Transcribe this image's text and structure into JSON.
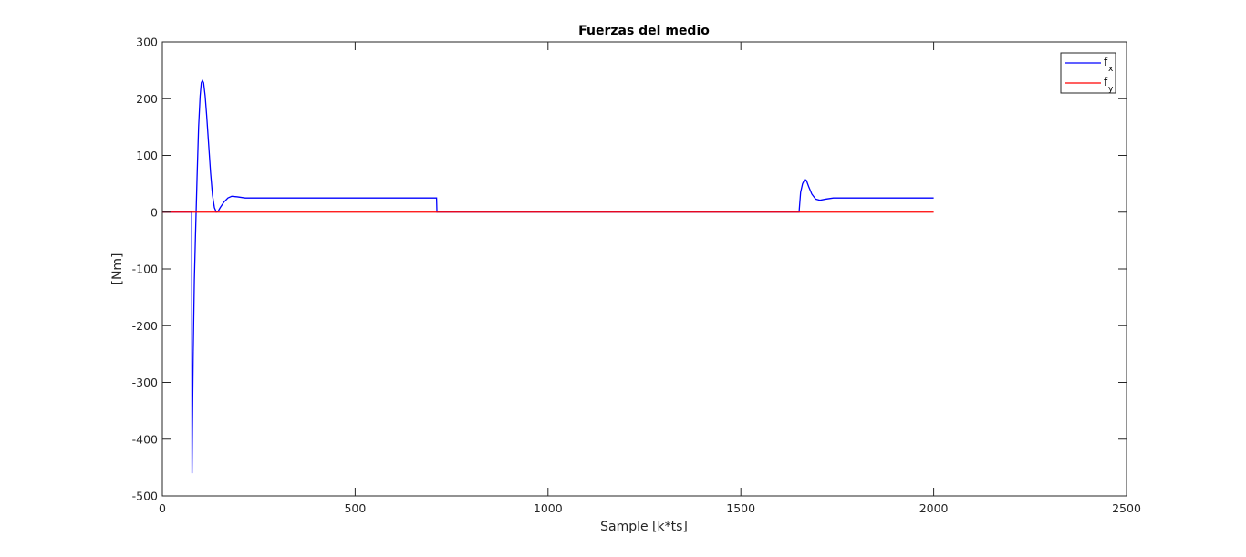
{
  "chart_data": {
    "type": "line",
    "title": "Fuerzas del medio",
    "xlabel": "Sample [k*ts]",
    "ylabel": "[Nm]",
    "xlim": [
      0,
      2500
    ],
    "ylim": [
      -500,
      300
    ],
    "xticks": [
      "0",
      "500",
      "1000",
      "1500",
      "2000",
      "2500"
    ],
    "yticks": [
      "300",
      "200",
      "100",
      "0",
      "-100",
      "-200",
      "-300",
      "-400",
      "-500"
    ],
    "grid": false,
    "legend_position": "top-right",
    "series": [
      {
        "name": "f",
        "subscript": "x",
        "color": "#0000ff",
        "points": [
          [
            0,
            0
          ],
          [
            76,
            0
          ],
          [
            77,
            -460
          ],
          [
            78,
            -380
          ],
          [
            80,
            -250
          ],
          [
            83,
            -120
          ],
          [
            86,
            -40
          ],
          [
            90,
            60
          ],
          [
            94,
            150
          ],
          [
            98,
            205
          ],
          [
            101,
            228
          ],
          [
            104,
            232
          ],
          [
            107,
            228
          ],
          [
            111,
            205
          ],
          [
            115,
            170
          ],
          [
            120,
            120
          ],
          [
            125,
            70
          ],
          [
            130,
            30
          ],
          [
            135,
            8
          ],
          [
            140,
            0
          ],
          [
            145,
            2
          ],
          [
            150,
            8
          ],
          [
            160,
            18
          ],
          [
            170,
            25
          ],
          [
            180,
            28
          ],
          [
            195,
            27
          ],
          [
            215,
            25
          ],
          [
            240,
            25
          ],
          [
            711,
            25
          ],
          [
            712,
            0
          ],
          [
            1650,
            0
          ],
          [
            1651,
            0
          ],
          [
            1655,
            35
          ],
          [
            1660,
            50
          ],
          [
            1666,
            58
          ],
          [
            1670,
            56
          ],
          [
            1676,
            45
          ],
          [
            1684,
            32
          ],
          [
            1694,
            23
          ],
          [
            1705,
            21
          ],
          [
            1720,
            23
          ],
          [
            1740,
            25
          ],
          [
            1800,
            25
          ],
          [
            2000,
            25
          ]
        ]
      },
      {
        "name": "f",
        "subscript": "y",
        "color": "#ff0000",
        "points": [
          [
            0,
            0
          ],
          [
            2000,
            0
          ]
        ]
      }
    ]
  }
}
